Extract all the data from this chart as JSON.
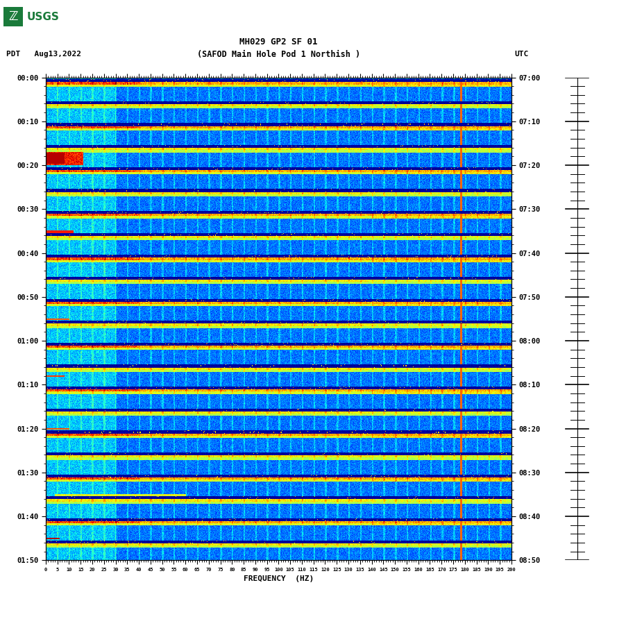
{
  "title_line1": "MH029 GP2 SF 01",
  "title_line2": "(SAFOD Main Hole Pod 1 Northish )",
  "left_label": "PDT   Aug13,2022",
  "right_label": "UTC",
  "xlabel": "FREQUENCY  (HZ)",
  "freq_min": 0,
  "freq_max": 200,
  "left_yticks": [
    "00:00",
    "00:10",
    "00:20",
    "00:30",
    "00:40",
    "00:50",
    "01:00",
    "01:10",
    "01:20",
    "01:30",
    "01:40",
    "01:50"
  ],
  "right_yticks": [
    "07:00",
    "07:10",
    "07:20",
    "07:30",
    "07:40",
    "07:50",
    "08:00",
    "08:10",
    "08:20",
    "08:30",
    "08:40",
    "08:50"
  ],
  "freq_ticks": [
    0,
    5,
    10,
    15,
    20,
    25,
    30,
    35,
    40,
    45,
    50,
    55,
    60,
    65,
    70,
    75,
    80,
    85,
    90,
    95,
    100,
    105,
    110,
    115,
    120,
    125,
    130,
    135,
    140,
    145,
    150,
    155,
    160,
    165,
    170,
    175,
    180,
    185,
    190,
    195,
    200
  ],
  "n_time": 660,
  "n_freq": 800,
  "bg_color": "#ffffff",
  "usgs_green": "#1a7a3a",
  "red_line_freq": 178
}
